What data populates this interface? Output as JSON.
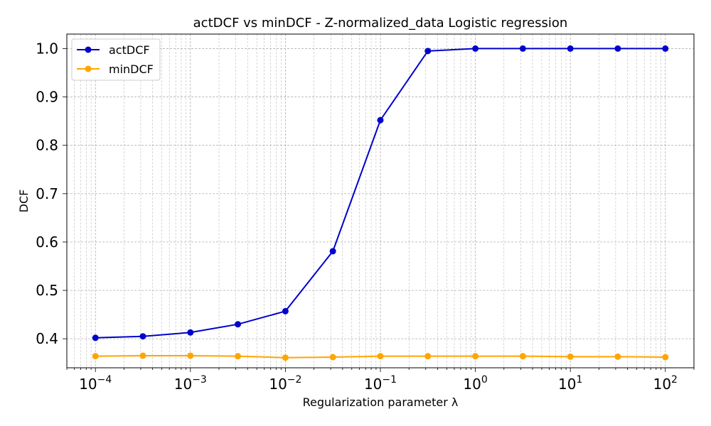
{
  "chart_data": {
    "type": "line",
    "title": "actDCF vs minDCF - Z-normalized_data Logistic regression",
    "xlabel": "Regularization parameter λ",
    "ylabel": "DCF",
    "xscale": "log",
    "xlim": [
      5e-05,
      200
    ],
    "ylim": [
      0.34,
      1.03
    ],
    "grid": true,
    "legend_position": "top-left",
    "x": [
      0.0001,
      0.000316,
      0.001,
      0.00316,
      0.01,
      0.0316,
      0.1,
      0.316,
      1,
      3.16,
      10,
      31.6,
      100
    ],
    "x_ticks": [
      {
        "base": "10",
        "exp": "−4",
        "value": 0.0001
      },
      {
        "base": "10",
        "exp": "−3",
        "value": 0.001
      },
      {
        "base": "10",
        "exp": "−2",
        "value": 0.01
      },
      {
        "base": "10",
        "exp": "−1",
        "value": 0.1
      },
      {
        "base": "10",
        "exp": "0",
        "value": 1
      },
      {
        "base": "10",
        "exp": "1",
        "value": 10
      },
      {
        "base": "10",
        "exp": "2",
        "value": 100
      }
    ],
    "y_ticks": [
      "0.4",
      "0.5",
      "0.6",
      "0.7",
      "0.8",
      "0.9",
      "1.0"
    ],
    "series": [
      {
        "name": "actDCF",
        "color": "#0000cc",
        "values": [
          0.402,
          0.405,
          0.413,
          0.43,
          0.457,
          0.581,
          0.852,
          0.995,
          1.0,
          1.0,
          1.0,
          1.0,
          1.0
        ]
      },
      {
        "name": "minDCF",
        "color": "#ffa500",
        "values": [
          0.364,
          0.365,
          0.365,
          0.364,
          0.361,
          0.362,
          0.364,
          0.364,
          0.364,
          0.364,
          0.363,
          0.363,
          0.362
        ]
      }
    ]
  }
}
